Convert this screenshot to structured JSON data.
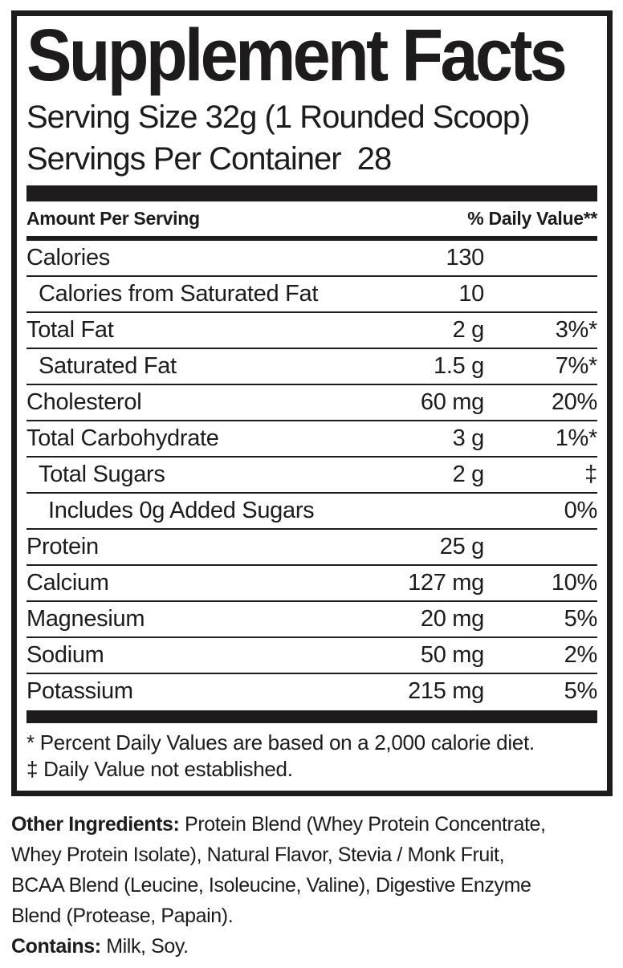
{
  "label": {
    "title": "Supplement Facts",
    "serving_size": "Serving Size 32g (1 Rounded Scoop)",
    "servings_per_container": "Servings Per Container  28",
    "header": {
      "amount": "Amount Per Serving",
      "dv": "% Daily Value**"
    },
    "rows": [
      {
        "name": "Calories",
        "amount": "130",
        "dv": ""
      },
      {
        "name": "Calories from Saturated Fat",
        "amount": "10",
        "dv": ""
      },
      {
        "name": "Total Fat",
        "amount": "2 g",
        "dv": "3%*"
      },
      {
        "name": "Saturated Fat",
        "amount": "1.5 g",
        "dv": "7%*"
      },
      {
        "name": "Cholesterol",
        "amount": "60 mg",
        "dv": "20%"
      },
      {
        "name": "Total Carbohydrate",
        "amount": "3 g",
        "dv": "1%*"
      },
      {
        "name": "Total Sugars",
        "amount": "2 g",
        "dv": "‡"
      },
      {
        "name": "Includes 0g Added Sugars",
        "amount": "",
        "dv": "0%"
      },
      {
        "name": "Protein",
        "amount": "25 g",
        "dv": ""
      },
      {
        "name": "Calcium",
        "amount": "127 mg",
        "dv": "10%"
      },
      {
        "name": "Magnesium",
        "amount": "20 mg",
        "dv": "5%"
      },
      {
        "name": "Sodium",
        "amount": "50 mg",
        "dv": "2%"
      },
      {
        "name": "Potassium",
        "amount": "215 mg",
        "dv": "5%"
      }
    ],
    "footnotes": [
      "* Percent Daily Values are based on a 2,000 calorie diet.",
      "‡ Daily Value not established."
    ]
  },
  "ingredients": {
    "other_label": "Other Ingredients:",
    "line1_rest": " Protein Blend (Whey Protein Concentrate,",
    "lines": [
      "Whey Protein Isolate), Natural Flavor, Stevia / Monk Fruit,",
      "BCAA Blend (Leucine, Isoleucine, Valine), Digestive Enzyme",
      "Blend (Protease, Papain)."
    ],
    "contains_label": "Contains:",
    "contains_text": " Milk, Soy."
  },
  "colors": {
    "ink": "#1d1b1b",
    "background": "#ffffff"
  }
}
